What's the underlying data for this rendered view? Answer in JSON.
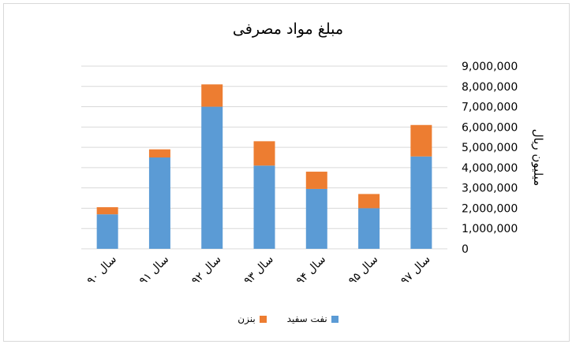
{
  "chart_data": {
    "type": "bar",
    "stacked": true,
    "title": "مبلغ مواد مصرفی",
    "ylabel": "میلیون ریال",
    "xlabel": "",
    "categories": [
      "سال ۹۰",
      "سال ۹۱",
      "سال ۹۲",
      "سال ۹۳",
      "سال ۹۴",
      "سال ۹۵",
      "سال ۹۷"
    ],
    "series": [
      {
        "name": "نفت سفید",
        "color": "#5b9bd5",
        "values": [
          1700000,
          4500000,
          7000000,
          4100000,
          2950000,
          2000000,
          4550000
        ]
      },
      {
        "name": "بنزن",
        "color": "#ed7d31",
        "values": [
          350000,
          400000,
          1100000,
          1200000,
          850000,
          700000,
          1550000
        ]
      }
    ],
    "ylim": [
      0,
      9000000
    ],
    "ytick_step": 1000000,
    "ytick_labels": [
      "0",
      "1,000,000",
      "2,000,000",
      "3,000,000",
      "4,000,000",
      "5,000,000",
      "6,000,000",
      "7,000,000",
      "8,000,000",
      "9,000,000"
    ],
    "grid": true,
    "legend_position": "bottom",
    "y_axis_side": "right"
  }
}
